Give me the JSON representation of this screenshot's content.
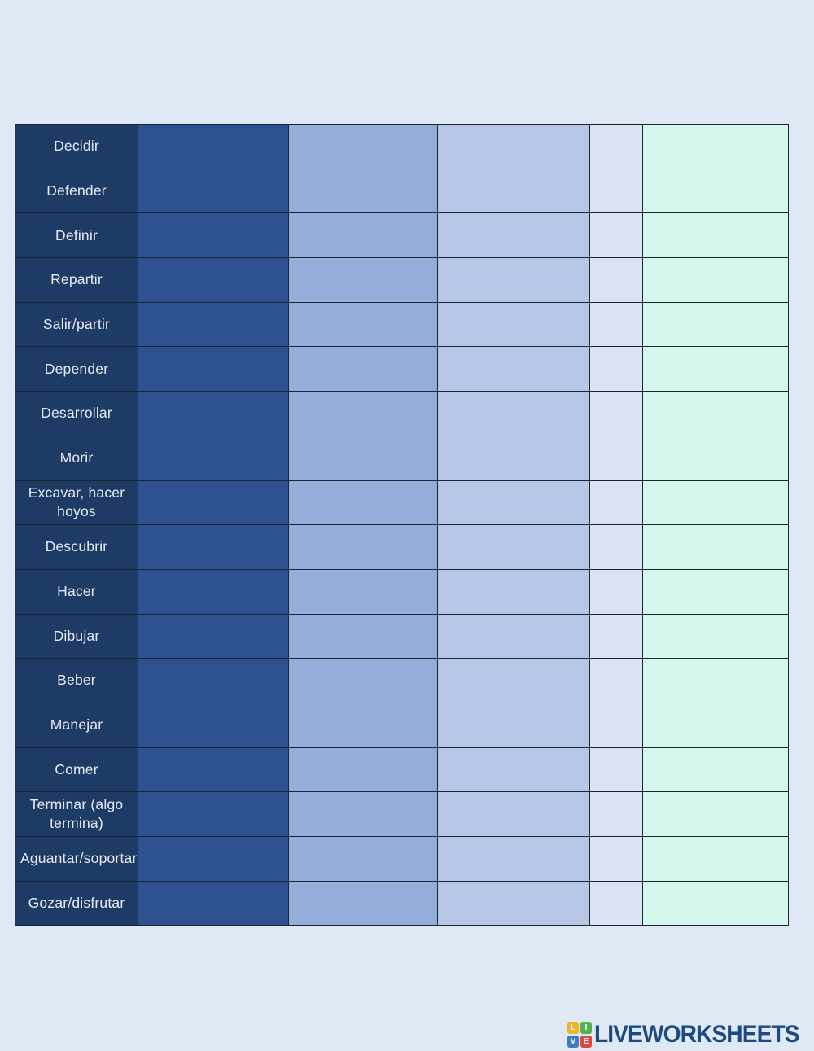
{
  "page": {
    "background": "#dfe9f6"
  },
  "table": {
    "border_color": "#1b2433",
    "label_text_color": "#e6ebf3",
    "column_colors": [
      "#1e3b66",
      "#2e5290",
      "#94add9",
      "#b6c7e6",
      "#dbe2f1",
      "#d4f8ec"
    ],
    "verbs": [
      "Decidir",
      "Defender",
      "Definir",
      "Repartir",
      "Salir/partir",
      "Depender",
      "Desarrollar",
      "Morir",
      "Excavar, hacer hoyos",
      "Descubrir",
      "Hacer",
      "Dibujar",
      "Beber",
      "Manejar",
      "Comer",
      "Terminar (algo termina)",
      "Aguantar/soportar",
      "Gozar/disfrutar"
    ]
  },
  "footer": {
    "brand": "LIVEWORKSHEETS",
    "brand_color": "#1d4a80",
    "icon": {
      "letters": [
        "L",
        "I",
        "V",
        "E"
      ],
      "colors": [
        "#f2b229",
        "#52b153",
        "#3c7dc1",
        "#e2453c"
      ]
    }
  }
}
